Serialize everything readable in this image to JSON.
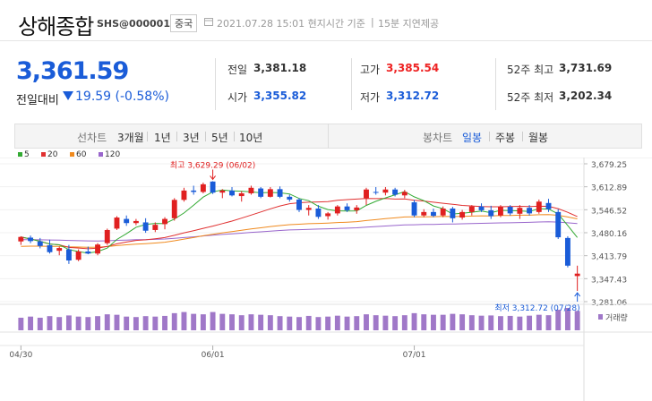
{
  "header": {
    "title": "상해종합",
    "code": "SHS@000001",
    "country": "중국",
    "datetime": "2021.07.28 15:01 현지시간 기준",
    "delay_note": "15분 지연제공"
  },
  "quote": {
    "price": "3,361.59",
    "change_label": "전일대비",
    "change": "19.59 (-0.58%)",
    "direction": "down"
  },
  "stats": [
    {
      "label": "전일",
      "value": "3,381.18",
      "tone": "neutral"
    },
    {
      "label": "고가",
      "value": "3,385.54",
      "tone": "up"
    },
    {
      "label": "52주 최고",
      "value": "3,731.69",
      "tone": "neutral"
    },
    {
      "label": "시가",
      "value": "3,355.82",
      "tone": "down"
    },
    {
      "label": "저가",
      "value": "3,312.72",
      "tone": "down"
    },
    {
      "label": "52주 최저",
      "value": "3,202.34",
      "tone": "neutral"
    }
  ],
  "tabs": {
    "line_group": "선차트",
    "line_tabs": [
      "3개월",
      "1년",
      "3년",
      "5년",
      "10년"
    ],
    "candle_group": "봉차트",
    "candle_tabs": [
      "일봉",
      "주봉",
      "월봉"
    ],
    "selected": "일봉"
  },
  "legend": [
    {
      "label": "5",
      "color": "#33aa33"
    },
    {
      "label": "20",
      "color": "#e03030"
    },
    {
      "label": "60",
      "color": "#f08a1e"
    },
    {
      "label": "120",
      "color": "#9966cc"
    }
  ],
  "colors": {
    "up": "#e02020",
    "down": "#1a5cd8",
    "volume": "#a078c8"
  },
  "chart_data": {
    "type": "candlestick",
    "annotations": {
      "high": "최고 3,629.29 (06/02)",
      "low": "최저 3,312.72 (07/28)"
    },
    "y_ticks": [
      "3,679.25",
      "3,612.89",
      "3,546.52",
      "3,480.16",
      "3,413.79",
      "3,347.43",
      "3,281.06"
    ],
    "ylim": [
      3281.06,
      3679.25
    ],
    "x_ticks": [
      {
        "label": "04/30",
        "index": 0
      },
      {
        "label": "06/01",
        "index": 20
      },
      {
        "label": "07/01",
        "index": 41
      }
    ],
    "volume_label": "거래량",
    "candles": [
      [
        3455,
        3470,
        3445,
        3468
      ],
      [
        3466,
        3472,
        3450,
        3456
      ],
      [
        3455,
        3465,
        3435,
        3442
      ],
      [
        3444,
        3460,
        3420,
        3424
      ],
      [
        3428,
        3440,
        3415,
        3436
      ],
      [
        3432,
        3445,
        3390,
        3400
      ],
      [
        3402,
        3432,
        3398,
        3426
      ],
      [
        3426,
        3440,
        3418,
        3420
      ],
      [
        3420,
        3450,
        3415,
        3446
      ],
      [
        3450,
        3492,
        3445,
        3488
      ],
      [
        3492,
        3528,
        3488,
        3524
      ],
      [
        3520,
        3530,
        3500,
        3508
      ],
      [
        3508,
        3520,
        3502,
        3514
      ],
      [
        3510,
        3522,
        3480,
        3486
      ],
      [
        3488,
        3510,
        3482,
        3503
      ],
      [
        3505,
        3525,
        3490,
        3520
      ],
      [
        3522,
        3580,
        3515,
        3575
      ],
      [
        3575,
        3610,
        3570,
        3602
      ],
      [
        3602,
        3616,
        3590,
        3598
      ],
      [
        3598,
        3625,
        3594,
        3620
      ],
      [
        3628,
        3629,
        3592,
        3596
      ],
      [
        3596,
        3606,
        3580,
        3602
      ],
      [
        3602,
        3612,
        3585,
        3588
      ],
      [
        3586,
        3600,
        3570,
        3594
      ],
      [
        3594,
        3616,
        3590,
        3610
      ],
      [
        3608,
        3612,
        3580,
        3584
      ],
      [
        3584,
        3612,
        3582,
        3606
      ],
      [
        3606,
        3614,
        3580,
        3584
      ],
      [
        3584,
        3590,
        3570,
        3576
      ],
      [
        3576,
        3580,
        3540,
        3546
      ],
      [
        3546,
        3560,
        3530,
        3552
      ],
      [
        3550,
        3560,
        3520,
        3526
      ],
      [
        3528,
        3540,
        3518,
        3536
      ],
      [
        3536,
        3560,
        3530,
        3556
      ],
      [
        3556,
        3565,
        3540,
        3545
      ],
      [
        3545,
        3560,
        3535,
        3553
      ],
      [
        3580,
        3610,
        3560,
        3605
      ],
      [
        3598,
        3612,
        3590,
        3596
      ],
      [
        3596,
        3612,
        3588,
        3605
      ],
      [
        3605,
        3610,
        3585,
        3590
      ],
      [
        3588,
        3604,
        3580,
        3598
      ],
      [
        3568,
        3575,
        3525,
        3530
      ],
      [
        3530,
        3548,
        3525,
        3540
      ],
      [
        3540,
        3550,
        3525,
        3529
      ],
      [
        3530,
        3556,
        3525,
        3550
      ],
      [
        3550,
        3555,
        3510,
        3522
      ],
      [
        3524,
        3546,
        3518,
        3540
      ],
      [
        3540,
        3560,
        3530,
        3556
      ],
      [
        3556,
        3565,
        3540,
        3545
      ],
      [
        3545,
        3558,
        3520,
        3528
      ],
      [
        3530,
        3560,
        3525,
        3555
      ],
      [
        3555,
        3560,
        3530,
        3536
      ],
      [
        3535,
        3560,
        3520,
        3552
      ],
      [
        3552,
        3560,
        3530,
        3536
      ],
      [
        3540,
        3576,
        3535,
        3570
      ],
      [
        3566,
        3578,
        3540,
        3548
      ],
      [
        3540,
        3548,
        3462,
        3467
      ],
      [
        3465,
        3470,
        3380,
        3385
      ],
      [
        3355,
        3385,
        3312,
        3362
      ]
    ],
    "volumes": [
      55,
      60,
      55,
      62,
      58,
      65,
      60,
      58,
      62,
      70,
      68,
      60,
      58,
      62,
      60,
      63,
      75,
      80,
      72,
      70,
      80,
      72,
      70,
      66,
      70,
      68,
      66,
      62,
      60,
      58,
      63,
      58,
      60,
      64,
      60,
      62,
      70,
      66,
      64,
      62,
      66,
      75,
      70,
      68,
      68,
      72,
      70,
      66,
      64,
      65,
      62,
      63,
      60,
      64,
      68,
      66,
      90,
      98,
      85
    ]
  }
}
